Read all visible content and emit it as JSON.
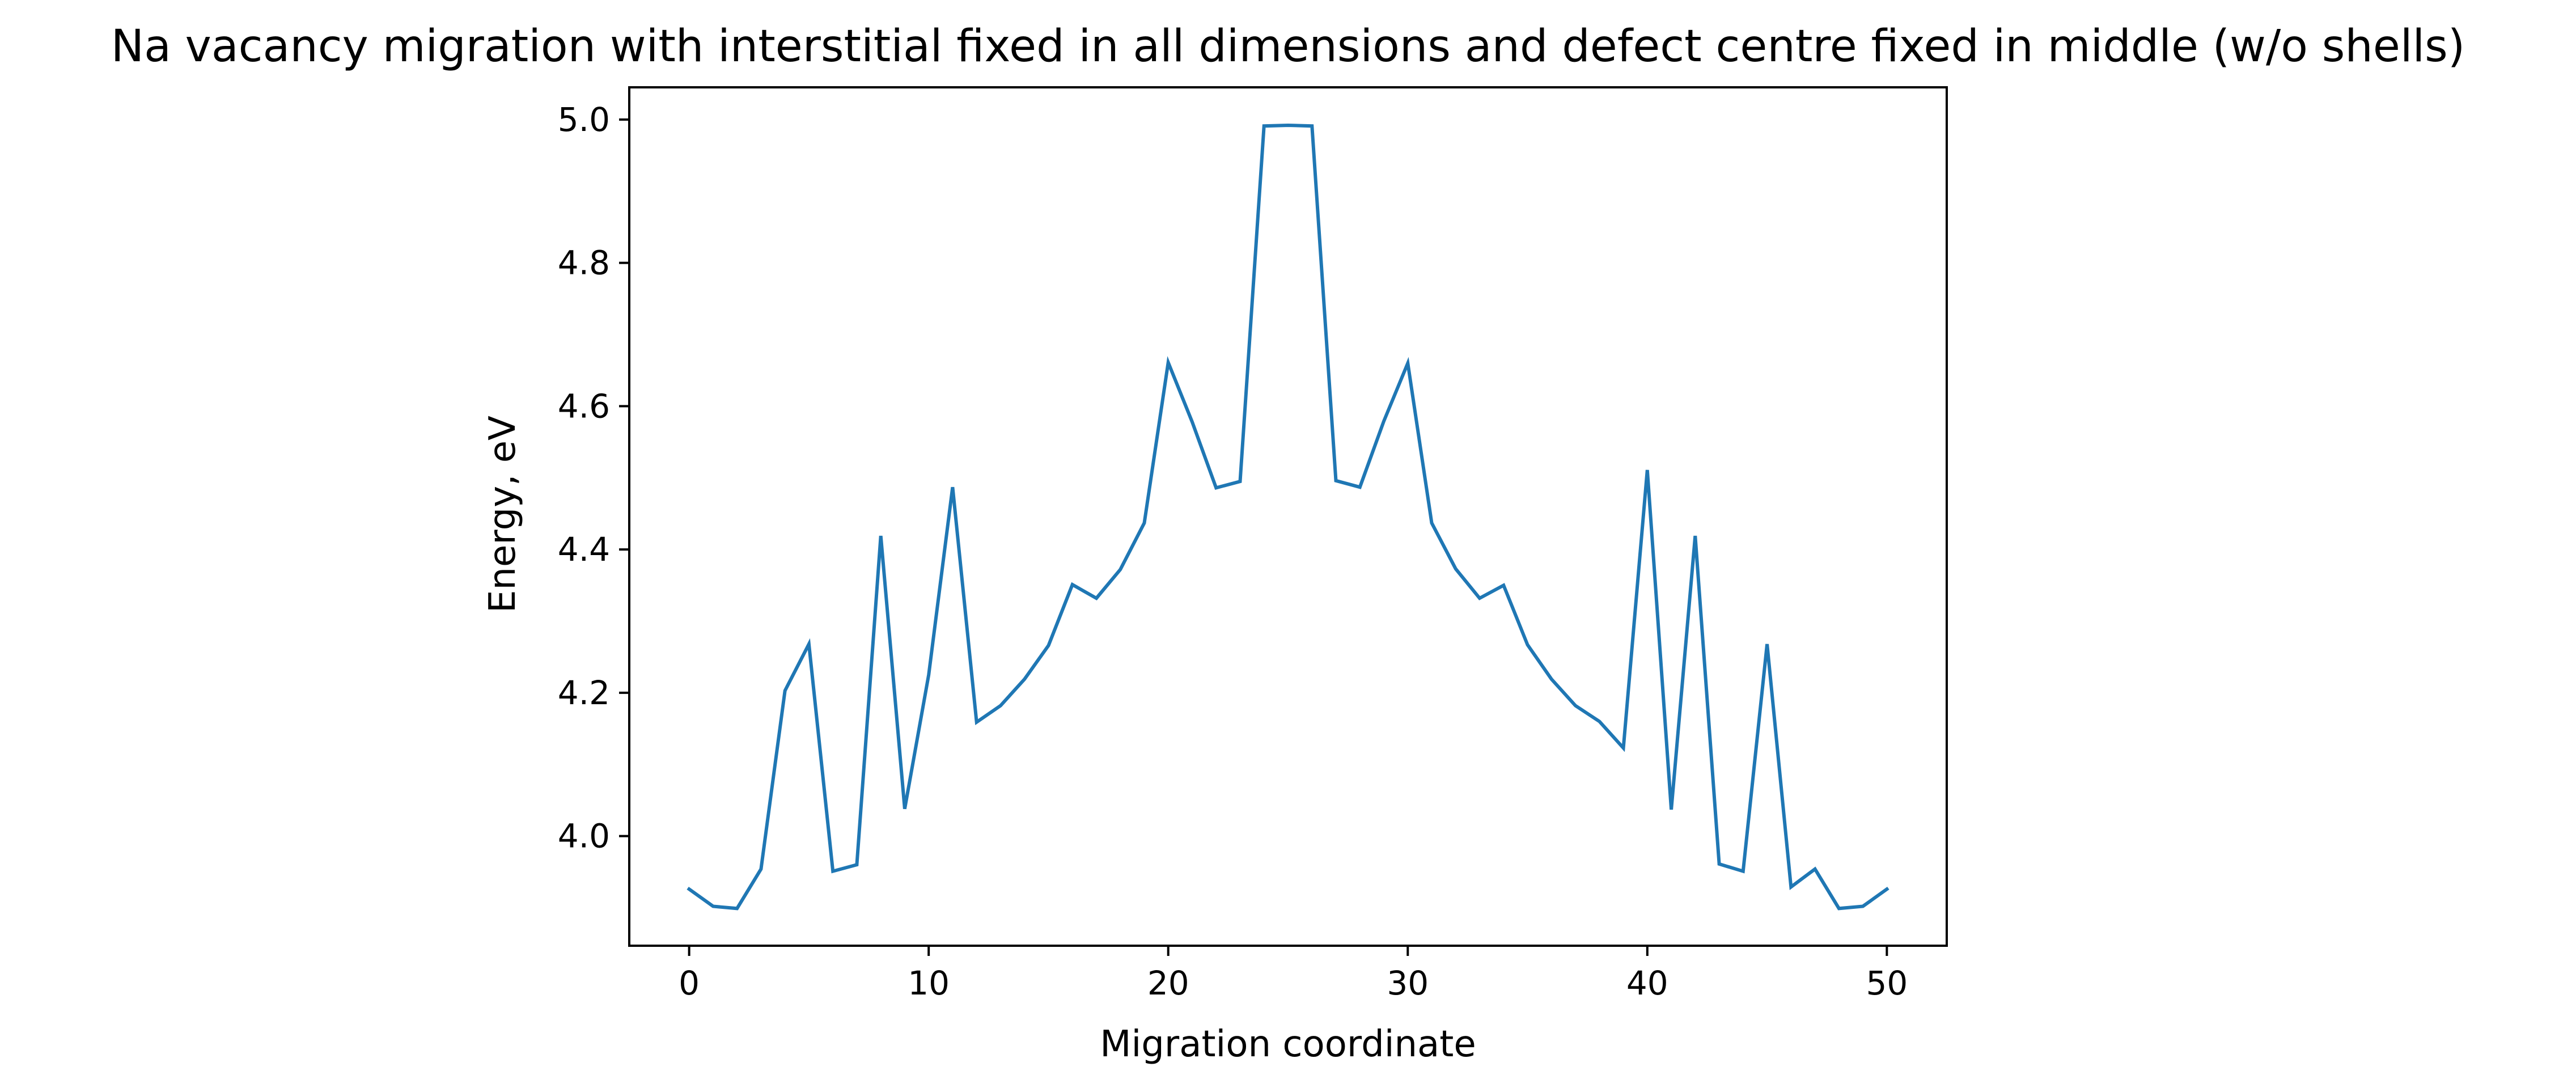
{
  "chart_data": {
    "type": "line",
    "title": "Na vacancy migration with interstitial fixed in all dimensions and defect centre fixed in middle (w/o shells)",
    "xlabel": "Migration coordinate",
    "ylabel": "Energy, eV",
    "xlim": [
      -2.5,
      52.5
    ],
    "ylim": [
      3.847,
      5.045
    ],
    "x_ticks": [
      0,
      10,
      20,
      30,
      40,
      50
    ],
    "x_tick_labels": [
      "0",
      "10",
      "20",
      "30",
      "40",
      "50"
    ],
    "y_ticks": [
      4.0,
      4.2,
      4.4,
      4.6,
      4.8,
      5.0
    ],
    "y_tick_labels": [
      "4.0",
      "4.2",
      "4.4",
      "4.6",
      "4.8",
      "5.0"
    ],
    "grid": false,
    "series": [
      {
        "color": "#1f77b4",
        "x": [
          0,
          1,
          2,
          3,
          4,
          5,
          6,
          7,
          8,
          9,
          10,
          11,
          12,
          13,
          14,
          15,
          16,
          17,
          18,
          19,
          20,
          21,
          22,
          23,
          24,
          25,
          26,
          27,
          28,
          29,
          30,
          31,
          32,
          33,
          34,
          35,
          36,
          37,
          38,
          39,
          40,
          41,
          42,
          43,
          44,
          45,
          46,
          47,
          48,
          49,
          50
        ],
        "y": [
          3.926,
          3.902,
          3.899,
          3.954,
          4.203,
          4.268,
          3.951,
          3.96,
          4.419,
          4.038,
          4.225,
          4.487,
          4.159,
          4.182,
          4.219,
          4.266,
          4.351,
          4.332,
          4.372,
          4.437,
          4.661,
          4.578,
          4.486,
          4.495,
          4.991,
          4.992,
          4.991,
          4.496,
          4.487,
          4.579,
          4.66,
          4.437,
          4.373,
          4.332,
          4.35,
          4.267,
          4.219,
          4.182,
          4.16,
          4.123,
          4.511,
          4.037,
          4.419,
          3.961,
          3.951,
          4.268,
          3.929,
          3.954,
          3.899,
          3.902,
          3.926
        ]
      }
    ]
  }
}
